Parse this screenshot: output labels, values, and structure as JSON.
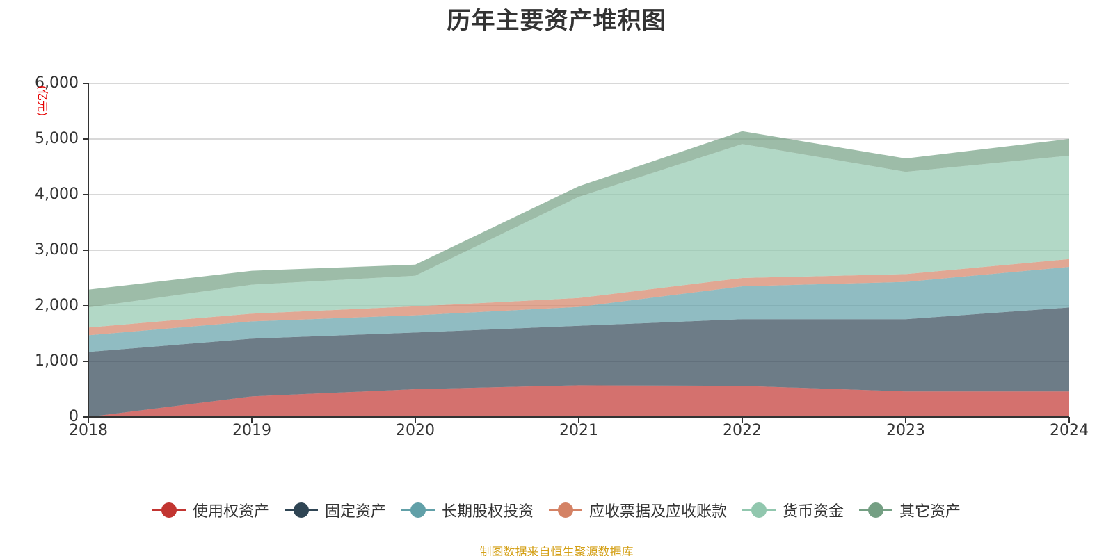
{
  "chart_data": {
    "type": "area",
    "stacked": true,
    "title": "历年主要资产堆积图",
    "unit_label": "(亿元)",
    "x": [
      "2018",
      "2019",
      "2020",
      "2021",
      "2022",
      "2023",
      "2024"
    ],
    "ylim": [
      0,
      6000
    ],
    "yticks": [
      0,
      1000,
      2000,
      3000,
      4000,
      5000,
      6000
    ],
    "ytick_labels": [
      "0",
      "1,000",
      "2,000",
      "3,000",
      "4,000",
      "5,000",
      "6,000"
    ],
    "grid": true,
    "legend_position": "bottom",
    "series": [
      {
        "name": "使用权资产",
        "color": "#c23531",
        "values": [
          0,
          370,
          500,
          570,
          560,
          460,
          460
        ]
      },
      {
        "name": "固定资产",
        "color": "#2f4554",
        "values": [
          1170,
          1040,
          1020,
          1070,
          1200,
          1300,
          1510
        ]
      },
      {
        "name": "长期股权投资",
        "color": "#61a0a8",
        "values": [
          300,
          310,
          310,
          340,
          590,
          670,
          730
        ]
      },
      {
        "name": "应收票据及应收账款",
        "color": "#d48265",
        "values": [
          140,
          140,
          160,
          160,
          150,
          140,
          140
        ]
      },
      {
        "name": "货币资金",
        "color": "#91c7ae",
        "values": [
          360,
          520,
          550,
          1820,
          2410,
          1840,
          1860
        ]
      },
      {
        "name": "其它资产",
        "color": "#749f83",
        "values": [
          320,
          250,
          200,
          190,
          230,
          240,
          300
        ]
      }
    ]
  },
  "footer": {
    "source": "制图数据来自恒生聚源数据库"
  }
}
